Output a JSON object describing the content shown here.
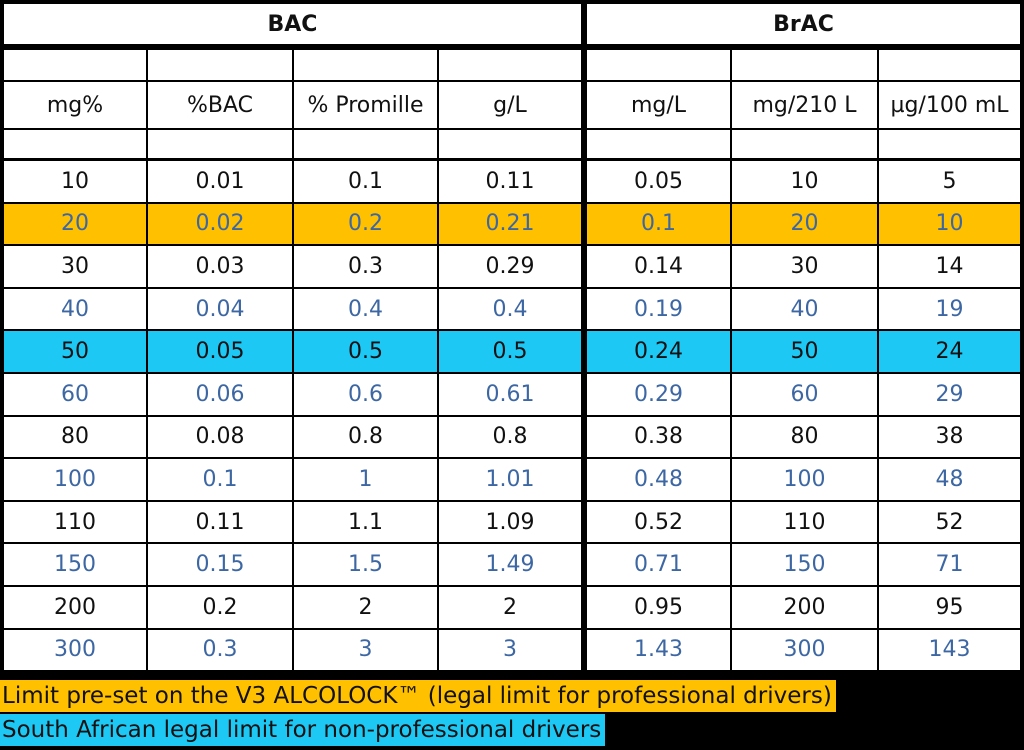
{
  "table": {
    "groups": [
      "BAC",
      "BrAC"
    ],
    "units": [
      "mg%",
      "%BAC",
      "% Promille",
      "g/L",
      "mg/L",
      "mg/210 L",
      "µg/100 mL"
    ],
    "rows": [
      {
        "values": [
          "10",
          "0.01",
          "0.1",
          "0.11",
          "0.05",
          "10",
          "5"
        ]
      },
      {
        "values": [
          "20",
          "0.02",
          "0.2",
          "0.21",
          "0.1",
          "20",
          "10"
        ],
        "background": "#ffc000"
      },
      {
        "values": [
          "30",
          "0.03",
          "0.3",
          "0.29",
          "0.14",
          "30",
          "14"
        ]
      },
      {
        "values": [
          "40",
          "0.04",
          "0.4",
          "0.4",
          "0.19",
          "40",
          "19"
        ]
      },
      {
        "values": [
          "50",
          "0.05",
          "0.5",
          "0.5",
          "0.24",
          "50",
          "24"
        ],
        "background": "#1ec8f5"
      },
      {
        "values": [
          "60",
          "0.06",
          "0.6",
          "0.61",
          "0.29",
          "60",
          "29"
        ]
      },
      {
        "values": [
          "80",
          "0.08",
          "0.8",
          "0.8",
          "0.38",
          "80",
          "38"
        ]
      },
      {
        "values": [
          "100",
          "0.1",
          "1",
          "1.01",
          "0.48",
          "100",
          "48"
        ]
      },
      {
        "values": [
          "110",
          "0.11",
          "1.1",
          "1.09",
          "0.52",
          "110",
          "52"
        ]
      },
      {
        "values": [
          "150",
          "0.15",
          "1.5",
          "1.49",
          "0.71",
          "150",
          "71"
        ]
      },
      {
        "values": [
          "200",
          "0.2",
          "2",
          "2",
          "0.95",
          "200",
          "95"
        ]
      },
      {
        "values": [
          "300",
          "0.3",
          "3",
          "3",
          "1.43",
          "300",
          "143"
        ]
      }
    ]
  },
  "notes": [
    {
      "text": "Limit pre-set on the V3 ALCOLOCK™ (legal limit for professional drivers)",
      "color": "#ffc000"
    },
    {
      "text": "South African legal limit for non-professional drivers",
      "color": "#1ec8f5"
    }
  ]
}
